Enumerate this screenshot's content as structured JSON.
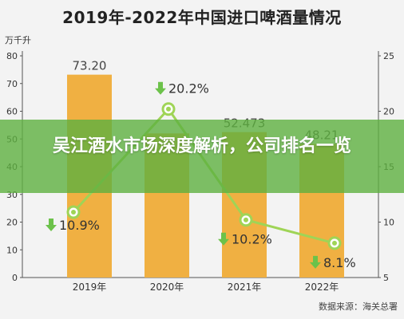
{
  "chart_data": {
    "type": "bar",
    "title": "2019年-2022年中国进口啤酒量情况",
    "ylabel_left": "万千升",
    "categories": [
      "2019年",
      "2020年",
      "2021年",
      "2022年"
    ],
    "left_axis": {
      "ylim": [
        0,
        80
      ],
      "ticks": [
        0,
        10,
        20,
        30,
        40,
        50,
        60,
        70,
        80
      ]
    },
    "right_axis": {
      "ylim": [
        5,
        25
      ],
      "ticks": [
        5,
        10,
        15,
        20,
        25
      ]
    },
    "series": [
      {
        "type": "bar",
        "axis": "left",
        "values": [
          73.2,
          52.0,
          52.473,
          48.21
        ],
        "labels": [
          "73.20",
          "",
          "52.473",
          "48.21"
        ],
        "color": "#f0b042"
      },
      {
        "type": "line",
        "axis": "right",
        "values": [
          10.9,
          20.2,
          10.2,
          8.1
        ],
        "labels": [
          "10.9%",
          "20.2%",
          "10.2%",
          "8.1%"
        ],
        "color": "#9fd456"
      }
    ],
    "grid": false,
    "legend": "none"
  },
  "banner": {
    "text": "吴江酒水市场深度解析，公司排名一览"
  },
  "source": {
    "text": "数据来源：海关总署"
  },
  "colors": {
    "bar": "#f0b042",
    "line": "#9fd456",
    "arrow": "#6cc24a",
    "banner": "#5eb040"
  }
}
